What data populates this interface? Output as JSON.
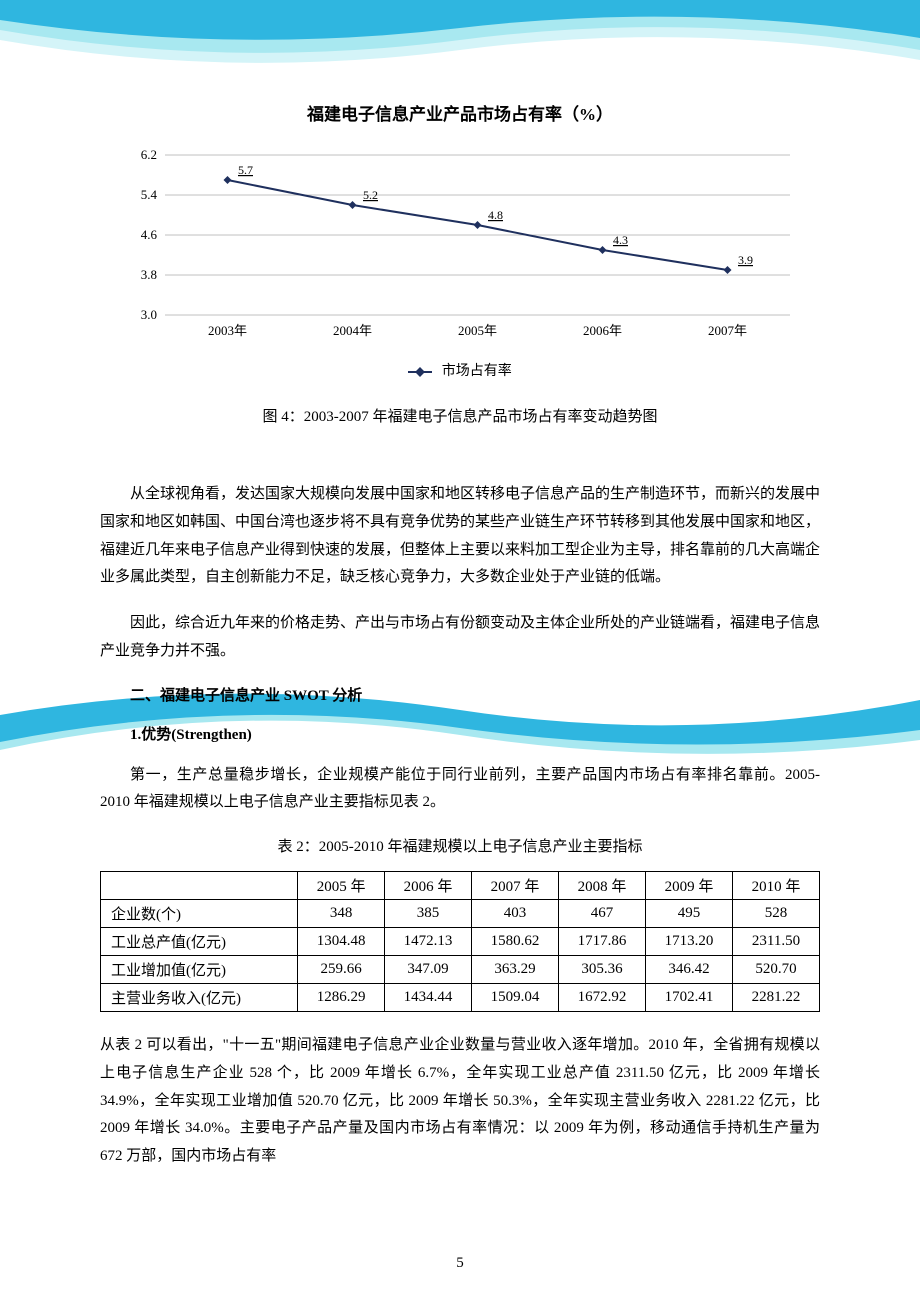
{
  "background": {
    "wave_colors": [
      "#2fb6e0",
      "#a8e8f0",
      "#d4f4f8"
    ]
  },
  "chart": {
    "title": "福建电子信息产业产品市场占有率（%）",
    "type": "line",
    "categories": [
      "2003年",
      "2004年",
      "2005年",
      "2006年",
      "2007年"
    ],
    "values": [
      5.7,
      5.2,
      4.8,
      4.3,
      3.9
    ],
    "ylim": [
      3.0,
      6.2
    ],
    "ytick_step": 0.8,
    "yticks": [
      3.0,
      3.8,
      4.6,
      5.4,
      6.2
    ],
    "line_color": "#1f305e",
    "marker_color": "#1f305e",
    "marker_style": "diamond",
    "grid_color": "#808080",
    "background_color": "#ffffff",
    "legend_label": "市场占有率",
    "series_name": "市场占有率"
  },
  "caption1": "图 4：2003-2007 年福建电子信息产品市场占有率变动趋势图",
  "para1": "从全球视角看，发达国家大规模向发展中国家和地区转移电子信息产品的生产制造环节，而新兴的发展中国家和地区如韩国、中国台湾也逐步将不具有竞争优势的某些产业链生产环节转移到其他发展中国家和地区，福建近几年来电子信息产业得到快速的发展，但整体上主要以来料加工型企业为主导，排名靠前的几大高端企业多属此类型，自主创新能力不足，缺乏核心竞争力，大多数企业处于产业链的低端。",
  "para2": "因此，综合近九年来的价格走势、产出与市场占有份额变动及主体企业所处的产业链端看，福建电子信息产业竞争力并不强。",
  "section_title": "二、福建电子信息产业 SWOT 分析",
  "sub_title": "1.优势(Strengthen)",
  "para3": "第一，生产总量稳步增长，企业规模产能位于同行业前列，主要产品国内市场占有率排名靠前。2005-2010 年福建规模以上电子信息产业主要指标见表 2。",
  "table_caption": "表 2：2005-2010 年福建规模以上电子信息产业主要指标",
  "table": {
    "columns": [
      "",
      "2005 年",
      "2006 年",
      "2007 年",
      "2008 年",
      "2009 年",
      "2010 年"
    ],
    "rows": [
      [
        "企业数(个)",
        "348",
        "385",
        "403",
        "467",
        "495",
        "528"
      ],
      [
        "工业总产值(亿元)",
        "1304.48",
        "1472.13",
        "1580.62",
        "1717.86",
        "1713.20",
        "2311.50"
      ],
      [
        "工业增加值(亿元)",
        "259.66",
        "347.09",
        "363.29",
        "305.36",
        "346.42",
        "520.70"
      ],
      [
        "主营业务收入(亿元)",
        "1286.29",
        "1434.44",
        "1509.04",
        "1672.92",
        "1702.41",
        "2281.22"
      ]
    ]
  },
  "para4": "从表 2 可以看出，\"十一五\"期间福建电子信息产业企业数量与营业收入逐年增加。2010 年，全省拥有规模以上电子信息生产企业 528 个，比 2009 年增长 6.7%，全年实现工业总产值 2311.50 亿元，比 2009 年增长 34.9%，全年实现工业增加值 520.70 亿元，比 2009 年增长 50.3%，全年实现主营业务收入 2281.22 亿元，比 2009 年增长 34.0%。主要电子产品产量及国内市场占有率情况：以 2009 年为例，移动通信手持机生产量为 672 万部，国内市场占有率",
  "page_number": "5"
}
